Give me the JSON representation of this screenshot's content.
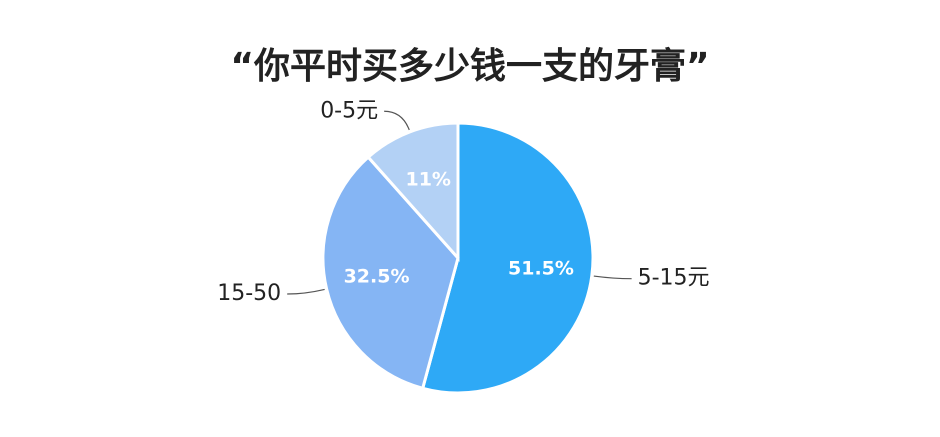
{
  "chart_data": {
    "type": "pie",
    "title": "“你平时买多少钱一支的牙膏”",
    "categories": [
      "5-15元",
      "15-50",
      "0-5元"
    ],
    "values": [
      51.5,
      32.5,
      11
    ],
    "value_labels": [
      "51.5%",
      "32.5%",
      "11%"
    ],
    "colors": [
      "#2ea9f6",
      "#85b5f4",
      "#b3d1f5"
    ]
  }
}
